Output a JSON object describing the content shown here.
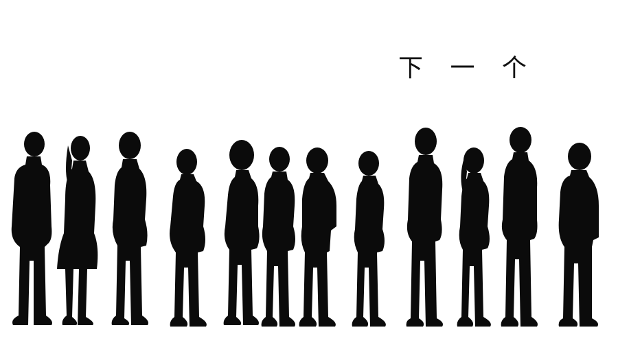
{
  "caption": {
    "text": "下 一 个"
  },
  "colors": {
    "background": "#ffffff",
    "silhouette": "#0b0b0b",
    "caption_text": "#111111"
  },
  "people_in_line": 12
}
